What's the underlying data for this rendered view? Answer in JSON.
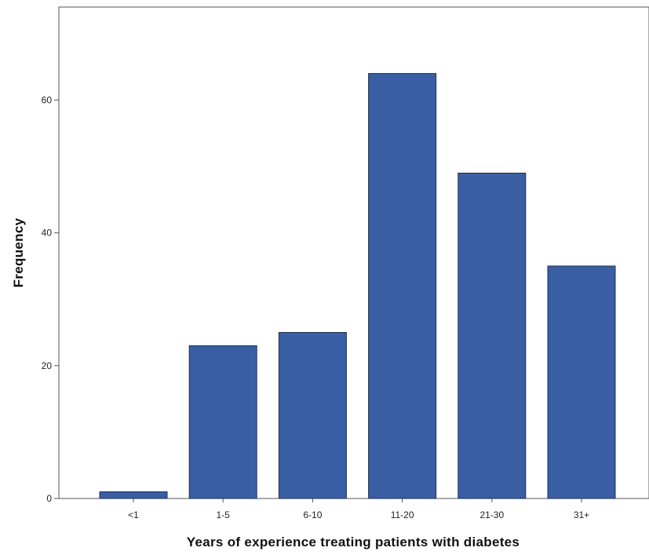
{
  "chart_data": {
    "type": "bar",
    "categories": [
      "<1",
      "1-5",
      "6-10",
      "11-20",
      "21-30",
      "31+"
    ],
    "values": [
      1,
      23,
      25,
      64,
      49,
      35
    ],
    "xlabel": "Years of experience treating patients with diabetes",
    "ylabel": "Frequency",
    "ylim": [
      0,
      74
    ],
    "yticks": [
      0,
      20,
      40,
      60
    ],
    "grid": false,
    "legend": "none",
    "bar_color": "#3a5ea4",
    "bar_edge_color": "#1f2f4f"
  }
}
